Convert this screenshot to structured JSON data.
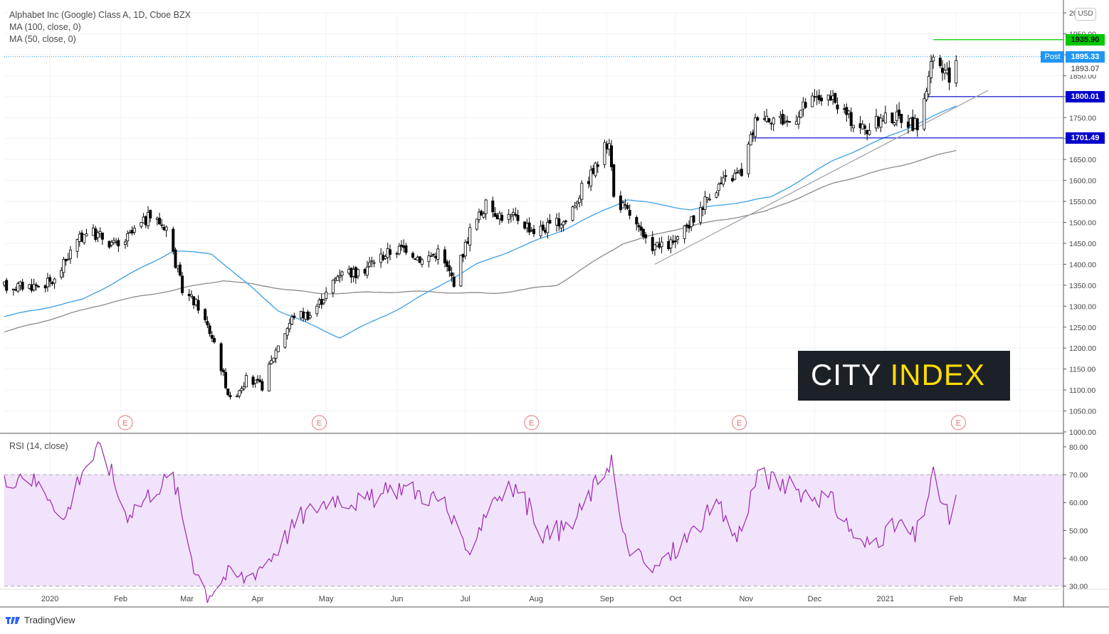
{
  "legend": {
    "title": "Alphabet Inc (Google) Class A, 1D, Cboe BZX",
    "ma100": "MA (100, close, 0)",
    "ma50": "MA (50, close, 0)",
    "rsi": "RSI (14, close)"
  },
  "currency": "USD",
  "post_label": "Post",
  "brand": {
    "city": "CITY",
    "index": "INDEX",
    "footer": "TradingView"
  },
  "colors": {
    "ma50": "#3aa0e8",
    "ma100": "#8a8a8a",
    "rsi": "#9c27b0",
    "rsi_band": "#f1e3fb",
    "green_line": "#00cc00",
    "blue_line": "#0000cc",
    "earnings": "#e57373",
    "candle": "#000000"
  },
  "price_tags": {
    "t1935": {
      "label": "1935.90",
      "value": 1935.9,
      "color": "#00c000"
    },
    "post": {
      "label": "1895.33",
      "value": 1895.33,
      "color": "#2196f3"
    },
    "last": {
      "label": "1893.07",
      "value": 1893.07
    },
    "t1800": {
      "label": "1800.01",
      "value": 1800.01,
      "color": "#0000cc"
    },
    "t1701": {
      "label": "1701.49",
      "value": 1701.49,
      "color": "#0000cc"
    }
  },
  "chart_data": {
    "type": "candlestick",
    "title": "Alphabet Inc (Google) Class A, 1D, Cboe BZX",
    "price_axis": {
      "ylim": [
        1000,
        2000
      ],
      "ticks": [
        "1000.00",
        "1050.00",
        "1100.00",
        "1150.00",
        "1200.00",
        "1250.00",
        "1300.00",
        "1350.00",
        "1400.00",
        "1450.00",
        "1500.00",
        "1550.00",
        "1600.00",
        "1650.00",
        "1700.00",
        "1750.00",
        "1800.00",
        "1850.00",
        "1900.00",
        "1950.00",
        "2000.00"
      ]
    },
    "rsi_axis": {
      "ylim": [
        30,
        80
      ],
      "ticks": [
        "30.00",
        "40.00",
        "50.00",
        "60.00",
        "70.00",
        "80.00"
      ],
      "band": [
        30,
        70
      ]
    },
    "x_labels": [
      "2020",
      "Feb",
      "Mar",
      "Apr",
      "May",
      "Jun",
      "Jul",
      "Aug",
      "Sep",
      "Oct",
      "Nov",
      "Dec",
      "2021",
      "Feb",
      "Mar"
    ],
    "earnings_markers": [
      "E",
      "E",
      "E",
      "E",
      "E"
    ],
    "price_anchors": [
      {
        "date": "2019-12-13",
        "close": 1347
      },
      {
        "date": "2019-12-27",
        "close": 1350
      },
      {
        "date": "2020-01-03",
        "close": 1360
      },
      {
        "date": "2020-01-10",
        "close": 1430
      },
      {
        "date": "2020-01-17",
        "close": 1480
      },
      {
        "date": "2020-01-24",
        "close": 1465
      },
      {
        "date": "2020-01-31",
        "close": 1440
      },
      {
        "date": "2020-02-07",
        "close": 1480
      },
      {
        "date": "2020-02-14",
        "close": 1515
      },
      {
        "date": "2020-02-21",
        "close": 1490
      },
      {
        "date": "2020-02-28",
        "close": 1340
      },
      {
        "date": "2020-03-06",
        "close": 1300
      },
      {
        "date": "2020-03-13",
        "close": 1215
      },
      {
        "date": "2020-03-20",
        "close": 1075
      },
      {
        "date": "2020-03-27",
        "close": 1125
      },
      {
        "date": "2020-04-03",
        "close": 1110
      },
      {
        "date": "2020-04-10",
        "close": 1210
      },
      {
        "date": "2020-04-17",
        "close": 1280
      },
      {
        "date": "2020-04-24",
        "close": 1280
      },
      {
        "date": "2020-05-01",
        "close": 1330
      },
      {
        "date": "2020-05-08",
        "close": 1390
      },
      {
        "date": "2020-05-15",
        "close": 1375
      },
      {
        "date": "2020-05-22",
        "close": 1410
      },
      {
        "date": "2020-05-29",
        "close": 1430
      },
      {
        "date": "2020-06-05",
        "close": 1440
      },
      {
        "date": "2020-06-12",
        "close": 1410
      },
      {
        "date": "2020-06-19",
        "close": 1430
      },
      {
        "date": "2020-06-26",
        "close": 1360
      },
      {
        "date": "2020-07-03",
        "close": 1480
      },
      {
        "date": "2020-07-10",
        "close": 1540
      },
      {
        "date": "2020-07-17",
        "close": 1515
      },
      {
        "date": "2020-07-24",
        "close": 1510
      },
      {
        "date": "2020-07-31",
        "close": 1480
      },
      {
        "date": "2020-08-07",
        "close": 1490
      },
      {
        "date": "2020-08-14",
        "close": 1505
      },
      {
        "date": "2020-08-21",
        "close": 1580
      },
      {
        "date": "2020-08-28",
        "close": 1640
      },
      {
        "date": "2020-09-02",
        "close": 1700
      },
      {
        "date": "2020-09-04",
        "close": 1560
      },
      {
        "date": "2020-09-11",
        "close": 1520
      },
      {
        "date": "2020-09-18",
        "close": 1450
      },
      {
        "date": "2020-09-25",
        "close": 1440
      },
      {
        "date": "2020-10-02",
        "close": 1455
      },
      {
        "date": "2020-10-09",
        "close": 1510
      },
      {
        "date": "2020-10-16",
        "close": 1570
      },
      {
        "date": "2020-10-23",
        "close": 1600
      },
      {
        "date": "2020-10-30",
        "close": 1620
      },
      {
        "date": "2020-11-06",
        "close": 1760
      },
      {
        "date": "2020-11-13",
        "close": 1750
      },
      {
        "date": "2020-11-20",
        "close": 1740
      },
      {
        "date": "2020-11-27",
        "close": 1780
      },
      {
        "date": "2020-12-04",
        "close": 1800
      },
      {
        "date": "2020-12-11",
        "close": 1780
      },
      {
        "date": "2020-12-18",
        "close": 1740
      },
      {
        "date": "2020-12-24",
        "close": 1720
      },
      {
        "date": "2020-12-31",
        "close": 1750
      },
      {
        "date": "2021-01-08",
        "close": 1750
      },
      {
        "date": "2021-01-15",
        "close": 1730
      },
      {
        "date": "2021-01-22",
        "close": 1890
      },
      {
        "date": "2021-01-29",
        "close": 1840
      },
      {
        "date": "2021-02-01",
        "close": 1895
      }
    ],
    "ma50_anchors": [
      {
        "date": "2019-12-12",
        "value": 1275
      },
      {
        "date": "2020-01-15",
        "value": 1315
      },
      {
        "date": "2020-02-24",
        "value": 1432
      },
      {
        "date": "2020-03-12",
        "value": 1425
      },
      {
        "date": "2020-04-10",
        "value": 1290
      },
      {
        "date": "2020-05-07",
        "value": 1225
      },
      {
        "date": "2020-06-04",
        "value": 1300
      },
      {
        "date": "2020-07-06",
        "value": 1400
      },
      {
        "date": "2020-08-12",
        "value": 1480
      },
      {
        "date": "2020-09-10",
        "value": 1555
      },
      {
        "date": "2020-10-08",
        "value": 1530
      },
      {
        "date": "2020-11-12",
        "value": 1560
      },
      {
        "date": "2020-12-10",
        "value": 1650
      },
      {
        "date": "2021-01-13",
        "value": 1730
      },
      {
        "date": "2021-02-01",
        "value": 1778
      }
    ],
    "ma100_anchors": [
      {
        "date": "2019-12-12",
        "value": 1238
      },
      {
        "date": "2020-01-28",
        "value": 1310
      },
      {
        "date": "2020-03-17",
        "value": 1362
      },
      {
        "date": "2020-04-27",
        "value": 1330
      },
      {
        "date": "2020-06-08",
        "value": 1335
      },
      {
        "date": "2020-07-13",
        "value": 1330
      },
      {
        "date": "2020-08-10",
        "value": 1350
      },
      {
        "date": "2020-09-08",
        "value": 1450
      },
      {
        "date": "2020-10-06",
        "value": 1490
      },
      {
        "date": "2020-11-09",
        "value": 1525
      },
      {
        "date": "2020-12-10",
        "value": 1595
      },
      {
        "date": "2021-01-14",
        "value": 1645
      },
      {
        "date": "2021-02-01",
        "value": 1672
      }
    ],
    "rsi_anchors": [
      {
        "date": "2019-12-12",
        "value": 67
      },
      {
        "date": "2019-12-20",
        "value": 71
      },
      {
        "date": "2020-01-02",
        "value": 62
      },
      {
        "date": "2020-01-07",
        "value": 53
      },
      {
        "date": "2020-01-15",
        "value": 72
      },
      {
        "date": "2020-01-24",
        "value": 80
      },
      {
        "date": "2020-02-03",
        "value": 56
      },
      {
        "date": "2020-02-10",
        "value": 60
      },
      {
        "date": "2020-02-17",
        "value": 66
      },
      {
        "date": "2020-02-24",
        "value": 69
      },
      {
        "date": "2020-03-04",
        "value": 38
      },
      {
        "date": "2020-03-10",
        "value": 27
      },
      {
        "date": "2020-03-18",
        "value": 34
      },
      {
        "date": "2020-03-27",
        "value": 33
      },
      {
        "date": "2020-04-06",
        "value": 40
      },
      {
        "date": "2020-04-20",
        "value": 55
      },
      {
        "date": "2020-05-04",
        "value": 62
      },
      {
        "date": "2020-05-18",
        "value": 60
      },
      {
        "date": "2020-06-03",
        "value": 66
      },
      {
        "date": "2020-06-22",
        "value": 60
      },
      {
        "date": "2020-07-01",
        "value": 41
      },
      {
        "date": "2020-07-13",
        "value": 62
      },
      {
        "date": "2020-07-24",
        "value": 65
      },
      {
        "date": "2020-08-05",
        "value": 48
      },
      {
        "date": "2020-08-17",
        "value": 52
      },
      {
        "date": "2020-08-31",
        "value": 72
      },
      {
        "date": "2020-09-03",
        "value": 76
      },
      {
        "date": "2020-09-08",
        "value": 47
      },
      {
        "date": "2020-09-21",
        "value": 35
      },
      {
        "date": "2020-10-06",
        "value": 47
      },
      {
        "date": "2020-10-19",
        "value": 59
      },
      {
        "date": "2020-10-28",
        "value": 47
      },
      {
        "date": "2020-11-06",
        "value": 70
      },
      {
        "date": "2020-11-25",
        "value": 64
      },
      {
        "date": "2020-12-08",
        "value": 61
      },
      {
        "date": "2020-12-22",
        "value": 44
      },
      {
        "date": "2021-01-07",
        "value": 52
      },
      {
        "date": "2021-01-14",
        "value": 47
      },
      {
        "date": "2021-01-22",
        "value": 69
      },
      {
        "date": "2021-01-29",
        "value": 54
      },
      {
        "date": "2021-02-01",
        "value": 61
      }
    ],
    "annotations": [
      {
        "type": "horizontal",
        "price": 1935.9,
        "from": "2021-01-22",
        "color": "green"
      },
      {
        "type": "horizontal",
        "price": 1800.01,
        "from": "2021-01-19",
        "color": "blue"
      },
      {
        "type": "horizontal",
        "price": 1701.49,
        "from": "2020-11-04",
        "color": "blue"
      },
      {
        "type": "trendline",
        "from_date": "2020-09-22",
        "from_price": 1400,
        "to_date": "2021-02-15",
        "to_price": 1815
      }
    ],
    "grid": true
  }
}
